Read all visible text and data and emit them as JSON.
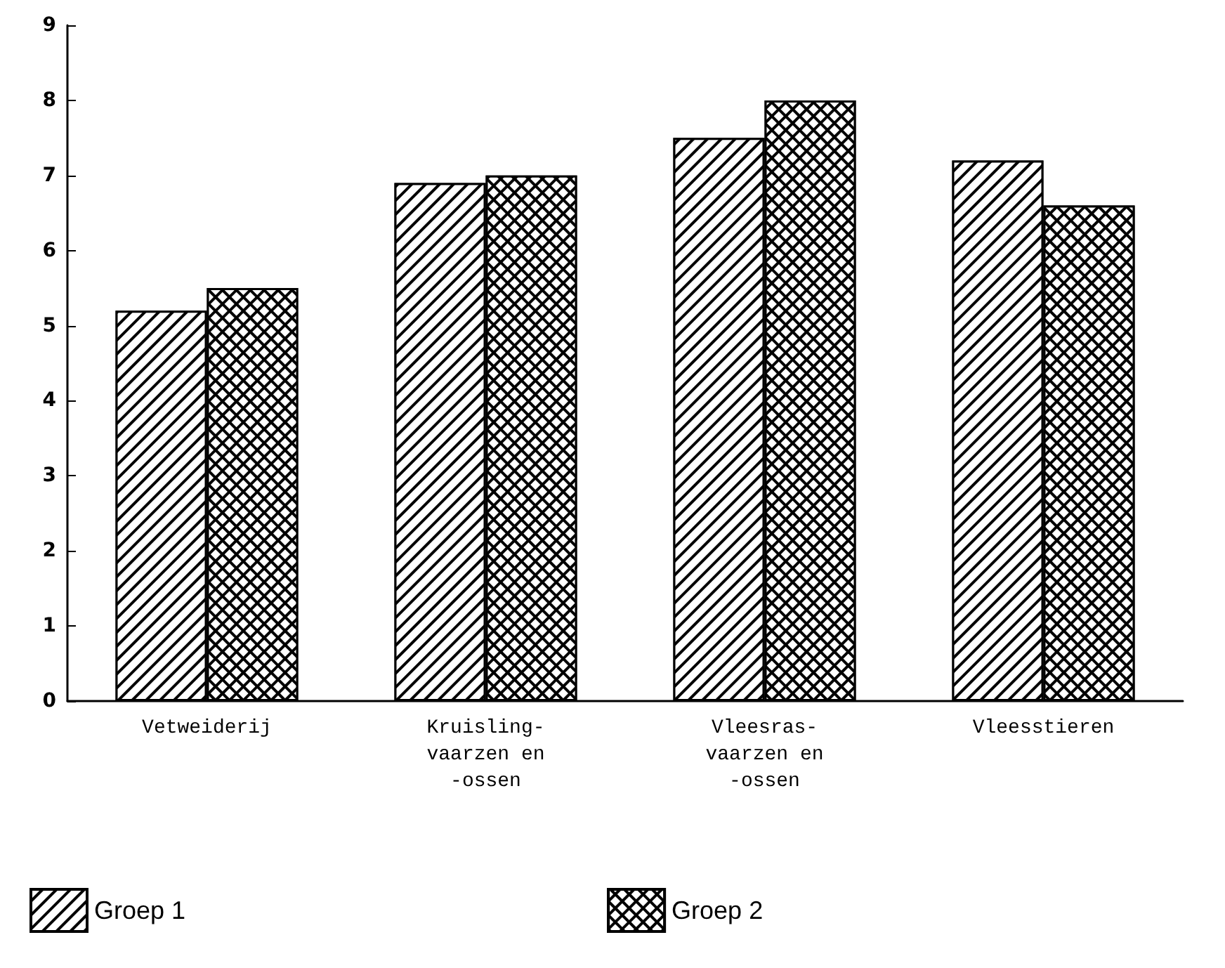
{
  "chart_data": {
    "type": "bar",
    "categories": [
      "Vetweiderij",
      "Kruisling-\nvaarzen en\n-ossen",
      "Vleesras-\nvaarzen en\n-ossen",
      "Vleesstieren"
    ],
    "series": [
      {
        "name": "Groep 1",
        "color": "#000000",
        "values": [
          5.2,
          6.9,
          7.5,
          7.2
        ]
      },
      {
        "name": "Groep 2",
        "color": "#000000",
        "values": [
          5.5,
          7.0,
          8.0,
          6.6
        ]
      }
    ],
    "ylim": [
      0,
      9
    ],
    "yticks": [
      0,
      1,
      2,
      3,
      4,
      5,
      6,
      7,
      8,
      9
    ],
    "grid": false,
    "legend": "bottom"
  }
}
